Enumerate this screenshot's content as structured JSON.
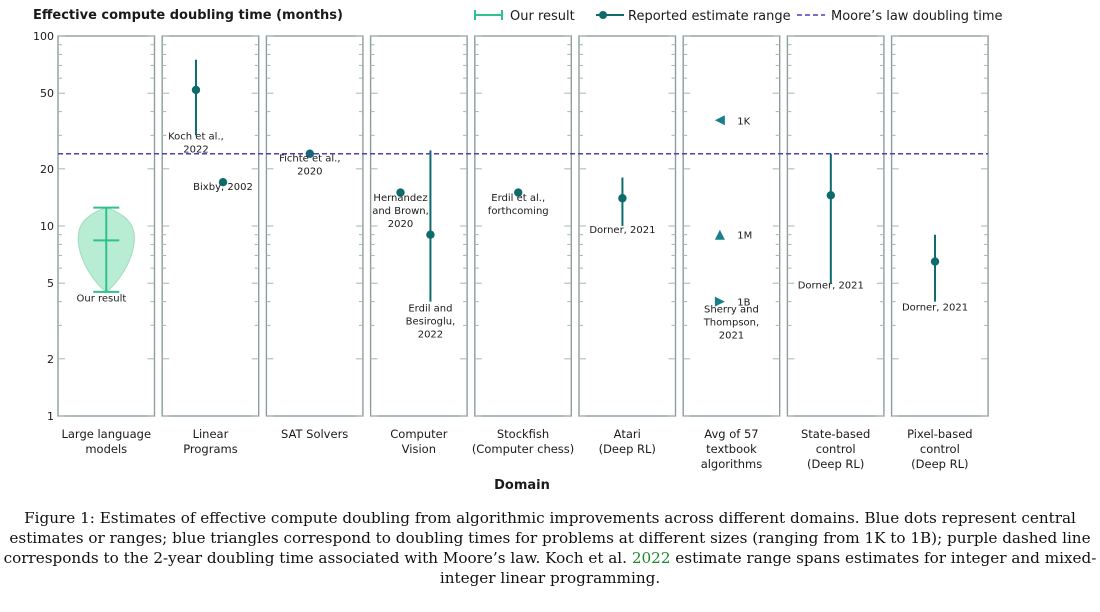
{
  "chart_data": {
    "type": "scatter",
    "ylabel": "Effective compute doubling time (months)",
    "xlabel": "Domain",
    "y_scale": "log",
    "ylim": [
      1,
      100
    ],
    "yticks": [
      1,
      2,
      5,
      10,
      20,
      50,
      100
    ],
    "legend": {
      "placement": "top",
      "entries": [
        {
          "key": "our_result",
          "label": "Our result",
          "color": "#2ec28a"
        },
        {
          "key": "reported",
          "label": "Reported estimate range",
          "color": "#0f6b6b"
        },
        {
          "key": "moore",
          "label": "Moore’s law doubling time",
          "color": "#4b3fc2"
        }
      ]
    },
    "moore_doubling_months": 24,
    "panels": [
      {
        "category": [
          "Large language",
          "models"
        ],
        "our_result": {
          "low": 4.5,
          "median": 8.4,
          "high": 12.5
        },
        "estimates": [
          {
            "type": "label",
            "y": 4.0,
            "offset": -0.05,
            "lines": [
              "Our result"
            ]
          }
        ]
      },
      {
        "category": [
          "Linear",
          "Programs"
        ],
        "estimates": [
          {
            "type": "point",
            "x": 0.35,
            "y": 52,
            "low": 30,
            "high": 75,
            "label": [
              "Koch et al.,",
              "2022"
            ],
            "label_y": 28.5,
            "label_offset": 0.0
          },
          {
            "type": "point",
            "x": 0.63,
            "y": 17,
            "label": [
              "Bixby, 2002"
            ],
            "label_y": 15.5,
            "label_offset": 0.0
          }
        ]
      },
      {
        "category": [
          "SAT Solvers"
        ],
        "estimates": [
          {
            "type": "point",
            "x": 0.45,
            "y": 24,
            "label": [
              "Fichte et al.,",
              "2020"
            ],
            "label_y": 21.8,
            "label_offset": 0.0
          }
        ]
      },
      {
        "category": [
          "Computer",
          "Vision"
        ],
        "estimates": [
          {
            "type": "point",
            "x": 0.31,
            "y": 15,
            "label": [
              "Hernandez",
              "and Brown,",
              "2020"
            ],
            "label_y": 13.5,
            "label_offset": 0.0
          },
          {
            "type": "point",
            "x": 0.62,
            "y": 9,
            "low": 4,
            "high": 25,
            "label": [
              "Erdil and",
              "Besiroglu,",
              "2022"
            ],
            "label_y": 3.55,
            "label_offset": 0.0
          }
        ]
      },
      {
        "category": [
          "Stockfish",
          "(Computer chess)"
        ],
        "estimates": [
          {
            "type": "point",
            "x": 0.45,
            "y": 15,
            "label": [
              "Erdil et al.,",
              "forthcoming"
            ],
            "label_y": 13.5,
            "label_offset": 0.0
          }
        ]
      },
      {
        "category": [
          "Atari",
          "(Deep RL)"
        ],
        "estimates": [
          {
            "type": "point",
            "x": 0.45,
            "y": 14,
            "low": 10,
            "high": 18,
            "label": [
              "Dorner, 2021"
            ],
            "label_y": 9.2,
            "label_offset": 0.0
          }
        ]
      },
      {
        "category": [
          "Avg of 57",
          "textbook",
          "algorithms"
        ],
        "estimates": [
          {
            "type": "tri-left",
            "x": 0.38,
            "y": 36,
            "label": [
              "1K"
            ],
            "label_y": 36,
            "label_offset": 0.18
          },
          {
            "type": "tri-up",
            "x": 0.38,
            "y": 9,
            "label": [
              "1M"
            ],
            "label_y": 9,
            "label_offset": 0.18
          },
          {
            "type": "tri-right",
            "x": 0.38,
            "y": 4,
            "label": [
              "1B"
            ],
            "label_y": 4,
            "label_offset": 0.18
          },
          {
            "type": "label",
            "y": 3.5,
            "offset": 0.0,
            "lines": [
              "Sherry and",
              "Thompson,",
              "2021"
            ]
          }
        ]
      },
      {
        "category": [
          "State-based",
          "control",
          "(Deep RL)"
        ],
        "estimates": [
          {
            "type": "point",
            "x": 0.45,
            "y": 14.5,
            "low": 5,
            "high": 24,
            "label": [
              "Dorner, 2021"
            ],
            "label_y": 4.7,
            "label_offset": 0.0
          }
        ]
      },
      {
        "category": [
          "Pixel-based",
          "control",
          "(Deep RL)"
        ],
        "estimates": [
          {
            "type": "point",
            "x": 0.45,
            "y": 6.5,
            "low": 4,
            "high": 9,
            "label": [
              "Dorner, 2021"
            ],
            "label_y": 3.6,
            "label_offset": 0.0
          }
        ]
      }
    ]
  },
  "caption": {
    "lead": "Figure 1:",
    "text_before": " Estimates of effective compute doubling from algorithmic improvements across different domains. Blue dots represent central estimates or ranges; blue triangles correspond to doubling times for problems at different sizes (ranging from 1K to 1B); purple dashed line corresponds to the 2-year doubling time associated with Moore’s law. Koch et al. ",
    "link": "2022",
    "text_after": " estimate range spans estimates for integer and mixed-integer linear programming."
  }
}
